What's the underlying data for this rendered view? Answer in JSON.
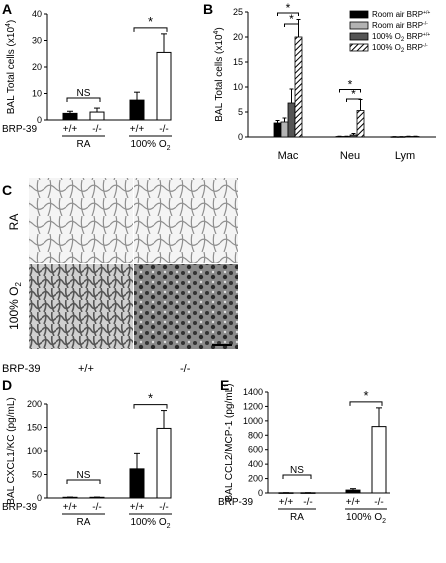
{
  "figure": {
    "genotype_row_label": "BRP-39",
    "genotype_wt": "+/+",
    "genotype_ko": "-/-",
    "micrograph_row_ra": "RA",
    "micrograph_row_o2": "100% O",
    "micrograph_row_o2_sub": "2"
  },
  "colors": {
    "black_bar": "#000000",
    "white_bar": "#ffffff",
    "light_gray_bar": "#b3b3b3",
    "dark_gray_bar": "#555555",
    "tissue": "#9a9a9a"
  },
  "chart_data": [
    {
      "panel": "A",
      "type": "bar",
      "ylabel": "BAL Total cells (x10",
      "ylabel_sup": "4",
      "ylabel_close": ")",
      "ylim": [
        0,
        40
      ],
      "yticks": [
        "0",
        "10",
        "20",
        "30",
        "40"
      ],
      "groups": [
        {
          "x_labels": [
            "+/+",
            "-/-"
          ],
          "label": "RA",
          "label_sub": ""
        },
        {
          "x_labels": [
            "+/+",
            "-/-"
          ],
          "label": "100% O",
          "label_sub": "2"
        }
      ],
      "bars": [
        {
          "value": 2.5,
          "error": 0.8,
          "fill": "black"
        },
        {
          "value": 3.0,
          "error": 1.5,
          "fill": "white"
        },
        {
          "value": 7.5,
          "error": 3.0,
          "fill": "black"
        },
        {
          "value": 25.5,
          "error": 7.0,
          "fill": "white"
        }
      ],
      "annotations": [
        {
          "text": "NS",
          "pair": [
            0,
            1
          ]
        },
        {
          "text": "*",
          "pair": [
            2,
            3
          ]
        }
      ]
    },
    {
      "panel": "B",
      "type": "bar",
      "ylabel": "BAL Total cells (x10",
      "ylabel_sup": "4",
      "ylabel_close": ")",
      "ylim": [
        0,
        25
      ],
      "yticks": [
        "0",
        "5",
        "10",
        "15",
        "20",
        "25"
      ],
      "categories": [
        "Mac",
        "Neu",
        "Lym"
      ],
      "series": [
        {
          "name": "Room air BRP",
          "name_sup": "+/+",
          "fill": "black",
          "values": [
            2.8,
            0.1,
            0.05
          ],
          "errors": [
            0.5,
            0.05,
            0.02
          ]
        },
        {
          "name": "Room air BRP",
          "name_sup": "-/-",
          "fill": "lightgray",
          "values": [
            3.0,
            0.1,
            0.05
          ],
          "errors": [
            0.8,
            0.05,
            0.02
          ]
        },
        {
          "name": "100% O",
          "name_sub": "2",
          "name_rest": " BRP",
          "name_sup": "+/+",
          "fill": "darkgray",
          "values": [
            6.8,
            0.4,
            0.1
          ],
          "errors": [
            2.8,
            0.3,
            0.05
          ]
        },
        {
          "name": "100% O",
          "name_sub": "2",
          "name_rest": " BRP",
          "name_sup": "-/-",
          "fill": "hatch",
          "values": [
            20.0,
            5.3,
            0.1
          ],
          "errors": [
            3.5,
            2.2,
            0.05
          ]
        }
      ],
      "annotations": [
        "*",
        "*",
        "*",
        "*"
      ]
    },
    {
      "panel": "D",
      "type": "bar",
      "ylabel": "BAL CXCL1/KC (pg/mL)",
      "ylim": [
        0,
        200
      ],
      "yticks": [
        "0",
        "50",
        "100",
        "150",
        "200"
      ],
      "groups": [
        {
          "x_labels": [
            "+/+",
            "-/-"
          ],
          "label": "RA",
          "label_sub": ""
        },
        {
          "x_labels": [
            "+/+",
            "-/-"
          ],
          "label": "100% O",
          "label_sub": "2"
        }
      ],
      "bars": [
        {
          "value": 1.5,
          "error": 0.5,
          "fill": "black"
        },
        {
          "value": 1.5,
          "error": 0.5,
          "fill": "white"
        },
        {
          "value": 62,
          "error": 33,
          "fill": "black"
        },
        {
          "value": 148,
          "error": 38,
          "fill": "white"
        }
      ],
      "annotations": [
        {
          "text": "NS",
          "pair": [
            0,
            1
          ]
        },
        {
          "text": "*",
          "pair": [
            2,
            3
          ]
        }
      ]
    },
    {
      "panel": "E",
      "type": "bar",
      "ylabel": "BAL CCL2/MCP-1 (pg/mL)",
      "ylim": [
        0,
        1400
      ],
      "yticks": [
        "0",
        "200",
        "400",
        "600",
        "800",
        "1000",
        "1200",
        "1400"
      ],
      "groups": [
        {
          "x_labels": [
            "+/+",
            "-/-"
          ],
          "label": "RA",
          "label_sub": ""
        },
        {
          "x_labels": [
            "+/+",
            "-/-"
          ],
          "label": "100% O",
          "label_sub": "2"
        }
      ],
      "bars": [
        {
          "value": 3,
          "error": 1,
          "fill": "black"
        },
        {
          "value": 3,
          "error": 1,
          "fill": "white"
        },
        {
          "value": 40,
          "error": 20,
          "fill": "black"
        },
        {
          "value": 920,
          "error": 260,
          "fill": "white"
        }
      ],
      "annotations": [
        {
          "text": "NS",
          "pair": [
            0,
            1
          ]
        },
        {
          "text": "*",
          "pair": [
            2,
            3
          ]
        }
      ]
    }
  ],
  "panel_letters": [
    "A",
    "B",
    "C",
    "D",
    "E"
  ]
}
